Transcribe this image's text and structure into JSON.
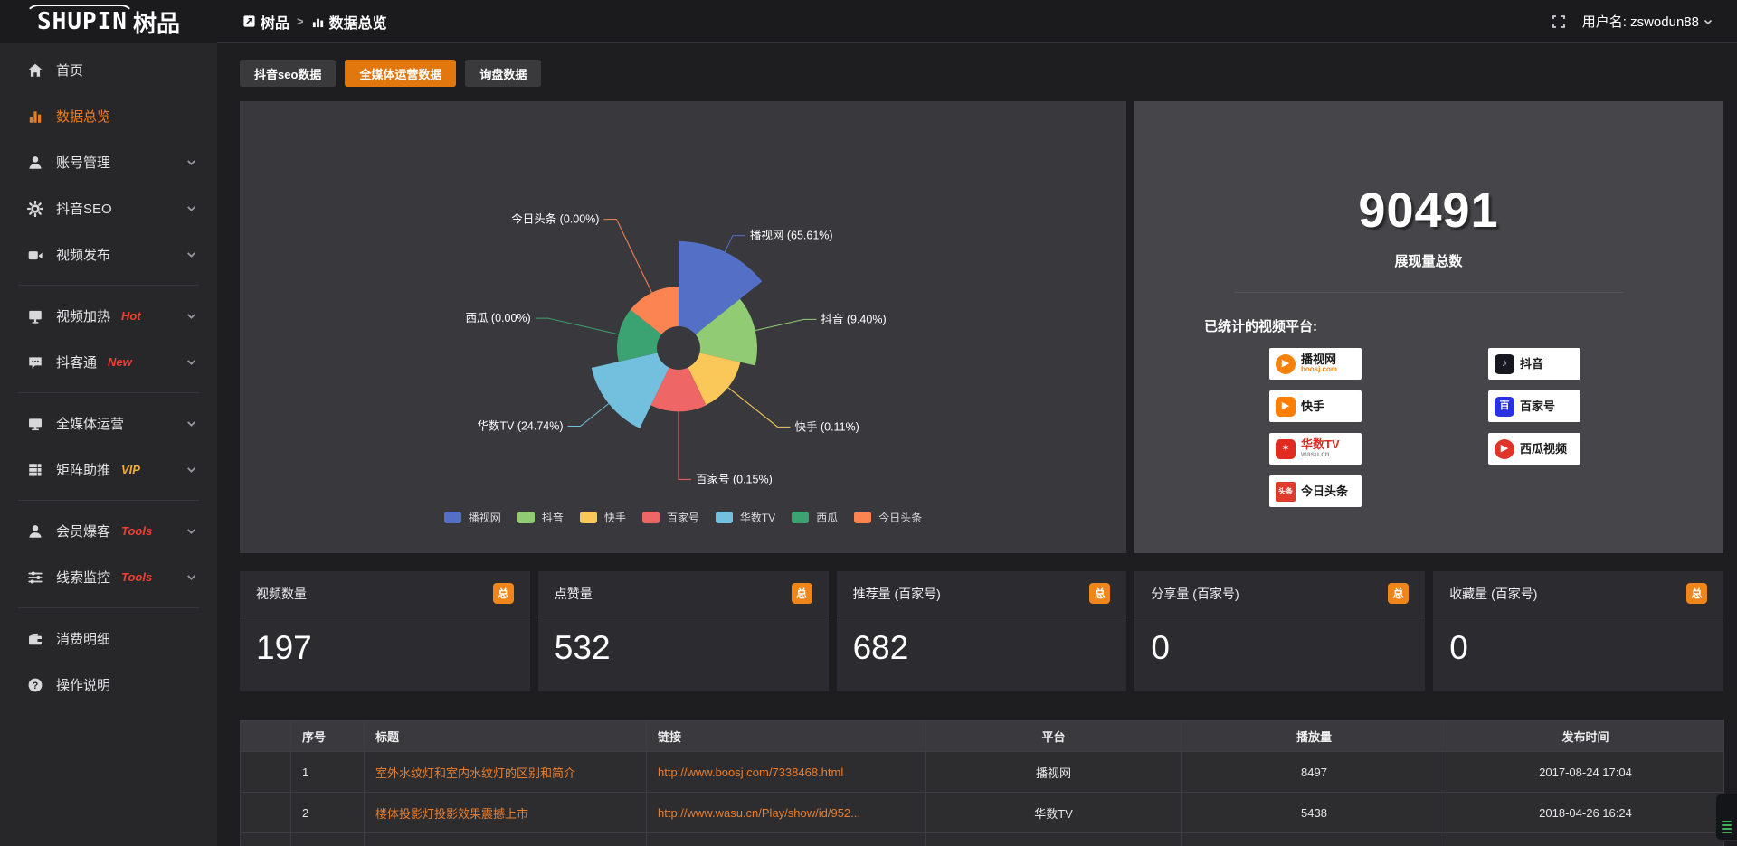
{
  "brand": {
    "logo_en": "SHUPIN",
    "logo_cjk": "树品"
  },
  "topbar": {
    "breadcrumb": [
      {
        "label": "树品"
      },
      {
        "label": "数据总览"
      }
    ],
    "separator": ">",
    "username": "用户名: zswodun88"
  },
  "sidebar": {
    "items": [
      {
        "label": "首页",
        "icon": "home-icon",
        "active": false,
        "chevron": false
      },
      {
        "label": "数据总览",
        "icon": "bar-chart-icon",
        "active": true,
        "chevron": false
      },
      {
        "label": "账号管理",
        "icon": "user-icon",
        "chevron": true
      },
      {
        "label": "抖音SEO",
        "icon": "gear-icon",
        "chevron": true
      },
      {
        "label": "视频发布",
        "icon": "video-icon",
        "chevron": true
      },
      {
        "divider": true
      },
      {
        "label": "视频加热",
        "icon": "screen-icon",
        "badge": "Hot",
        "badge_color": "#f03f33",
        "chevron": true
      },
      {
        "label": "抖客通",
        "icon": "chat-icon",
        "badge": "New",
        "badge_color": "#f03f33",
        "chevron": true
      },
      {
        "divider": true
      },
      {
        "label": "全媒体运营",
        "icon": "monitor-icon",
        "chevron": true
      },
      {
        "label": "矩阵助推",
        "icon": "grid-icon",
        "badge": "VIP",
        "badge_color": "#efad34",
        "chevron": true
      },
      {
        "divider": true
      },
      {
        "label": "会员爆客",
        "icon": "member-icon",
        "badge": "Tools",
        "badge_color": "#f03f33",
        "chevron": true
      },
      {
        "label": "线索监控",
        "icon": "sliders-icon",
        "badge": "Tools",
        "badge_color": "#f03f33",
        "chevron": true
      },
      {
        "divider": true
      },
      {
        "label": "消费明细",
        "icon": "wallet-icon",
        "chevron": false
      },
      {
        "label": "操作说明",
        "icon": "question-icon",
        "chevron": false
      }
    ]
  },
  "tabs": [
    {
      "label": "抖音seo数据",
      "active": false
    },
    {
      "label": "全媒体运营数据",
      "active": true
    },
    {
      "label": "询盘数据",
      "active": false
    }
  ],
  "chart_data": {
    "type": "pie",
    "subtype": "nightingale-rose",
    "categories": [
      "播视网",
      "抖音",
      "快手",
      "百家号",
      "华数TV",
      "西瓜",
      "今日头条"
    ],
    "values_percent": [
      65.61,
      9.4,
      0.11,
      0.15,
      24.74,
      0.0,
      0.0
    ],
    "colors": [
      "#5470c6",
      "#91cc75",
      "#fac858",
      "#ee6666",
      "#73c0de",
      "#3ba272",
      "#fc8452"
    ],
    "label_format": "{name} ({value}%)",
    "legend_position": "bottom",
    "donut": true
  },
  "summary": {
    "total_value": "90491",
    "total_label": "展现量总数",
    "platforms_label": "已统计的视频平台:",
    "platform_columns": [
      [
        {
          "name": "播视网",
          "sub": "boosj.com",
          "icon": "boosj-play-icon",
          "icon_shape": "circle",
          "icon_color": "#f5820b",
          "glyph": "▶",
          "name_color": "#1a1a1a",
          "sub_color": "#f5820b"
        },
        {
          "name": "快手",
          "icon": "kuaishou-icon",
          "icon_shape": "round-rect",
          "icon_color": "#ff7e00",
          "glyph": "▶",
          "name_color": "#1a1a1a"
        },
        {
          "name": "华数TV",
          "sub": "wasu.cn",
          "icon": "wasu-icon",
          "icon_shape": "round-rect",
          "icon_color": "#e02b20",
          "glyph": "✶",
          "name_color": "#e02b20",
          "sub_color": "#9a9a9a"
        },
        {
          "name": "今日头条",
          "icon": "toutiao-icon",
          "icon_shape": "rect",
          "icon_color": "#e03c2d",
          "glyph": "头条",
          "name_color": "#1a1a1a"
        }
      ],
      [
        {
          "name": "抖音",
          "icon": "douyin-icon",
          "icon_shape": "round-rect",
          "icon_color": "#17181f",
          "glyph": "♪",
          "name_color": "#1a1a1a"
        },
        {
          "name": "百家号",
          "icon": "baijiahao-icon",
          "icon_shape": "round-rect",
          "icon_color": "#2932e1",
          "glyph": "百",
          "name_color": "#1a1a1a"
        },
        {
          "name": "西瓜视频",
          "icon": "xigua-icon",
          "icon_shape": "circle",
          "icon_color": "#e0342b",
          "glyph": "▶",
          "name_color": "#1a1a1a"
        }
      ]
    ]
  },
  "stat_cards": [
    {
      "title": "视频数量",
      "badge": "总",
      "value": "197"
    },
    {
      "title": "点赞量",
      "badge": "总",
      "value": "532"
    },
    {
      "title": "推荐量 (百家号)",
      "badge": "总",
      "value": "682"
    },
    {
      "title": "分享量 (百家号)",
      "badge": "总",
      "value": "0"
    },
    {
      "title": "收藏量 (百家号)",
      "badge": "总",
      "value": "0"
    }
  ],
  "table": {
    "headers": [
      "序号",
      "标题",
      "链接",
      "平台",
      "播放量",
      "发布时间"
    ],
    "rows": [
      {
        "num": "1",
        "title": "室外水纹灯和室内水纹灯的区别和简介",
        "link": "http://www.boosj.com/7338468.html",
        "platform": "播视网",
        "views": "8497",
        "time": "2017-08-24 17:04"
      },
      {
        "num": "2",
        "title": "楼体投影灯投影效果震撼上市",
        "link": "http://www.wasu.cn/Play/show/id/952...",
        "platform": "华数TV",
        "views": "5438",
        "time": "2018-04-26 16:24"
      },
      {
        "num": "",
        "title": "",
        "link": "",
        "platform": "",
        "views": "",
        "time": ""
      }
    ]
  }
}
